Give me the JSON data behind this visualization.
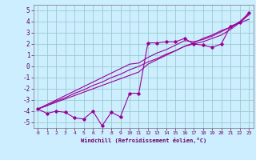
{
  "xlabel": "Windchill (Refroidissement éolien,°C)",
  "bg_color": "#cceeff",
  "line_color": "#990099",
  "grid_color": "#99cccc",
  "text_color": "#660066",
  "x_data": [
    0,
    1,
    2,
    3,
    4,
    5,
    6,
    7,
    8,
    9,
    10,
    11,
    12,
    13,
    14,
    15,
    16,
    17,
    18,
    19,
    20,
    21,
    22,
    23
  ],
  "y_scatter": [
    -3.8,
    -4.2,
    -4.0,
    -4.1,
    -4.6,
    -4.7,
    -4.0,
    -5.3,
    -4.1,
    -4.5,
    -2.4,
    -2.4,
    2.1,
    2.1,
    2.2,
    2.2,
    2.5,
    2.0,
    1.9,
    1.7,
    2.0,
    3.6,
    3.9,
    4.8
  ],
  "y_line1": [
    -3.8,
    -3.5,
    -3.1,
    -2.8,
    -2.4,
    -2.1,
    -1.7,
    -1.4,
    -1.0,
    -0.7,
    -0.3,
    0.0,
    0.4,
    0.7,
    1.1,
    1.4,
    1.8,
    2.1,
    2.5,
    2.8,
    3.2,
    3.5,
    3.9,
    4.2
  ],
  "y_line2": [
    -3.8,
    -3.5,
    -3.2,
    -2.9,
    -2.6,
    -2.3,
    -2.0,
    -1.7,
    -1.4,
    -1.1,
    -0.8,
    -0.5,
    0.2,
    0.6,
    1.0,
    1.4,
    1.8,
    2.0,
    2.2,
    2.5,
    2.8,
    3.3,
    3.9,
    4.6
  ],
  "y_line3": [
    -3.8,
    -3.4,
    -3.0,
    -2.6,
    -2.2,
    -1.8,
    -1.4,
    -1.0,
    -0.6,
    -0.2,
    0.2,
    0.3,
    0.8,
    1.2,
    1.5,
    1.9,
    2.3,
    2.2,
    2.4,
    2.7,
    3.1,
    3.5,
    4.0,
    4.7
  ],
  "ylim": [
    -5.5,
    5.5
  ],
  "xlim": [
    -0.5,
    23.5
  ],
  "yticks": [
    -5,
    -4,
    -3,
    -2,
    -1,
    0,
    1,
    2,
    3,
    4,
    5
  ],
  "xticks": [
    0,
    1,
    2,
    3,
    4,
    5,
    6,
    7,
    8,
    9,
    10,
    11,
    12,
    13,
    14,
    15,
    16,
    17,
    18,
    19,
    20,
    21,
    22,
    23
  ]
}
